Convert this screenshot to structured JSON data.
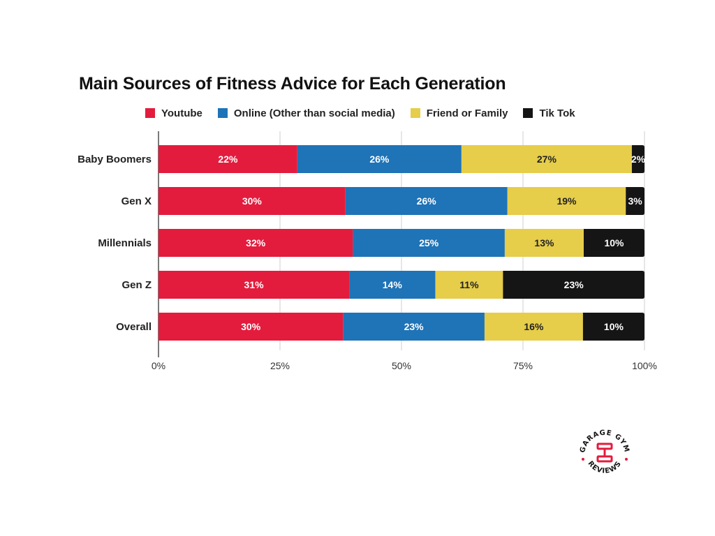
{
  "chart_data": {
    "type": "bar",
    "orientation": "horizontal",
    "stacked": true,
    "normalized": true,
    "title": "Main Sources of Fitness Advice for Each Generation",
    "categories": [
      "Baby Boomers",
      "Gen X",
      "Millennials",
      "Gen Z",
      "Overall"
    ],
    "series": [
      {
        "name": "Youtube",
        "color": "#e31c3d",
        "values": [
          22,
          30,
          32,
          31,
          30
        ],
        "labels": [
          "22%",
          "30%",
          "32%",
          "31%",
          "30%"
        ]
      },
      {
        "name": "Online (Other than social media)",
        "color": "#1f73b7",
        "values": [
          26,
          26,
          25,
          14,
          23
        ],
        "labels": [
          "26%",
          "26%",
          "25%",
          "14%",
          "23%"
        ]
      },
      {
        "name": "Friend or Family",
        "color": "#e6cd4a",
        "values": [
          27,
          19,
          13,
          11,
          16
        ],
        "labels": [
          "27%",
          "19%",
          "13%",
          "11%",
          "16%"
        ]
      },
      {
        "name": "Tik Tok",
        "color": "#151515",
        "values": [
          2,
          3,
          10,
          23,
          10
        ],
        "labels": [
          "2%",
          "3%",
          "10%",
          "23%",
          "10%"
        ]
      }
    ],
    "xticks": [
      "0%",
      "25%",
      "50%",
      "75%",
      "100%"
    ],
    "xlim": [
      0,
      100
    ],
    "grid": true,
    "legend": "top",
    "xlabel": "",
    "ylabel": ""
  },
  "logo": {
    "text_top": "GARAGE GYM",
    "text_bottom": "REVIEWS",
    "color": "#e31c3d"
  }
}
